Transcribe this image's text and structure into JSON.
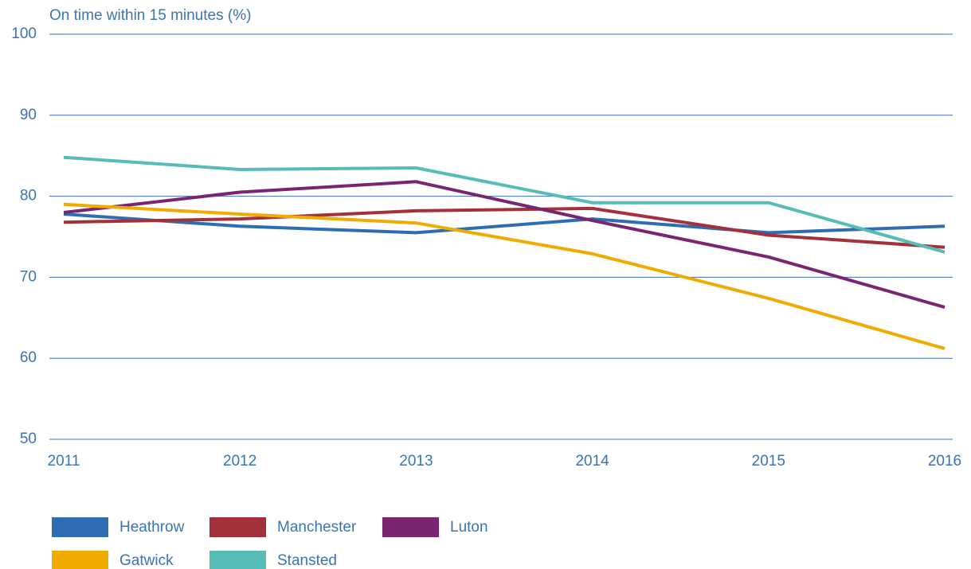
{
  "chart_data": {
    "type": "line",
    "y_label": "On time within 15 minutes (%)",
    "x": [
      2011,
      2012,
      2013,
      2014,
      2015,
      2016
    ],
    "xlim": [
      2011,
      2016
    ],
    "xticks": [
      2011,
      2012,
      2013,
      2014,
      2015,
      2016
    ],
    "ylim": [
      50,
      100
    ],
    "yticks": [
      50,
      60,
      70,
      80,
      90,
      100
    ],
    "grid": true,
    "legend": "bottom",
    "series": [
      {
        "name": "Heathrow",
        "color": "#2e6db4",
        "values": [
          77.8,
          76.3,
          75.5,
          77.2,
          75.5,
          76.3
        ]
      },
      {
        "name": "Manchester",
        "color": "#a3303a",
        "values": [
          76.8,
          77.2,
          78.2,
          78.5,
          75.2,
          73.7
        ]
      },
      {
        "name": "Luton",
        "color": "#7b2472",
        "values": [
          78.0,
          80.5,
          81.8,
          77.0,
          72.5,
          66.3
        ]
      },
      {
        "name": "Gatwick",
        "color": "#f0ab00",
        "values": [
          79.0,
          77.8,
          76.7,
          72.9,
          67.4,
          61.2
        ]
      },
      {
        "name": "Stansted",
        "color": "#56bcb5",
        "values": [
          84.8,
          83.3,
          83.5,
          79.2,
          79.2,
          73.1
        ]
      }
    ]
  }
}
